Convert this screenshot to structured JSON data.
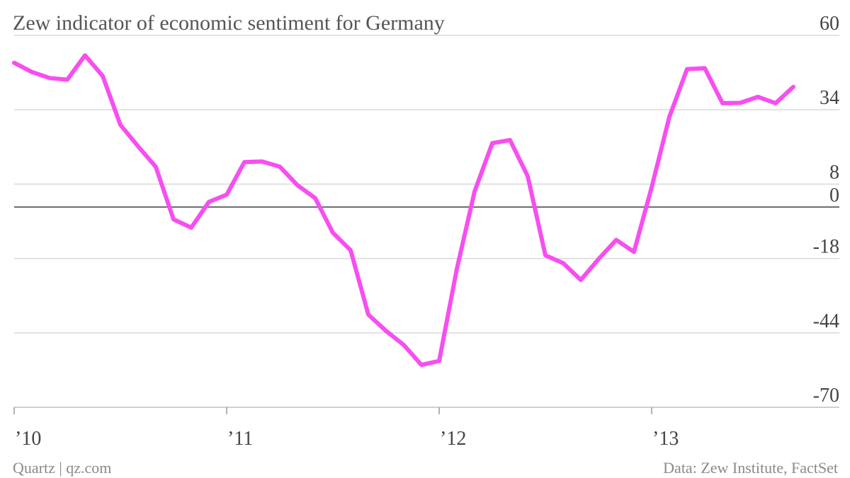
{
  "chart_data": {
    "type": "line",
    "title": "Zew indicator of economic sentiment for Germany",
    "xlabel": "",
    "ylabel": "",
    "x_tick_labels": [
      "’10",
      "’11",
      "’12",
      "’13"
    ],
    "x_tick_values": [
      2010,
      2011,
      2012,
      2013
    ],
    "xlim": [
      2010,
      2014
    ],
    "y_ticks": [
      60,
      34,
      8,
      0,
      -18,
      -44,
      -70
    ],
    "ylim": [
      -70,
      60
    ],
    "grid": true,
    "legend": "none",
    "line_color": "#f74ef0",
    "x": [
      2010.0,
      2010.0833,
      2010.1667,
      2010.25,
      2010.3333,
      2010.4167,
      2010.5,
      2010.5833,
      2010.6667,
      2010.75,
      2010.8333,
      2010.9167,
      2011.0,
      2011.0833,
      2011.1667,
      2011.25,
      2011.3333,
      2011.4167,
      2011.5,
      2011.5833,
      2011.6667,
      2011.75,
      2011.8333,
      2011.9167,
      2012.0,
      2012.0833,
      2012.1667,
      2012.25,
      2012.3333,
      2012.4167,
      2012.5,
      2012.5833,
      2012.6667,
      2012.75,
      2012.8333,
      2012.9167,
      2013.0,
      2013.0833,
      2013.1667,
      2013.25,
      2013.3333,
      2013.4167,
      2013.5,
      2013.5833,
      2013.6667
    ],
    "values": [
      50.4,
      47.2,
      45.1,
      44.5,
      53.0,
      45.8,
      28.7,
      21.2,
      14.0,
      -4.3,
      -7.2,
      1.8,
      4.3,
      15.7,
      15.9,
      14.1,
      7.6,
      3.1,
      -9.0,
      -15.1,
      -37.6,
      -43.3,
      -48.2,
      -55.2,
      -53.8,
      -21.6,
      5.4,
      22.3,
      23.4,
      10.8,
      -16.9,
      -19.6,
      -25.5,
      -18.2,
      -11.5,
      -15.7,
      6.9,
      31.5,
      48.2,
      48.5,
      36.3,
      36.4,
      38.5,
      36.3,
      42.0
    ]
  },
  "footer": {
    "source_left": "Quartz | qz.com",
    "source_right": "Data: Zew Institute, FactSet"
  }
}
